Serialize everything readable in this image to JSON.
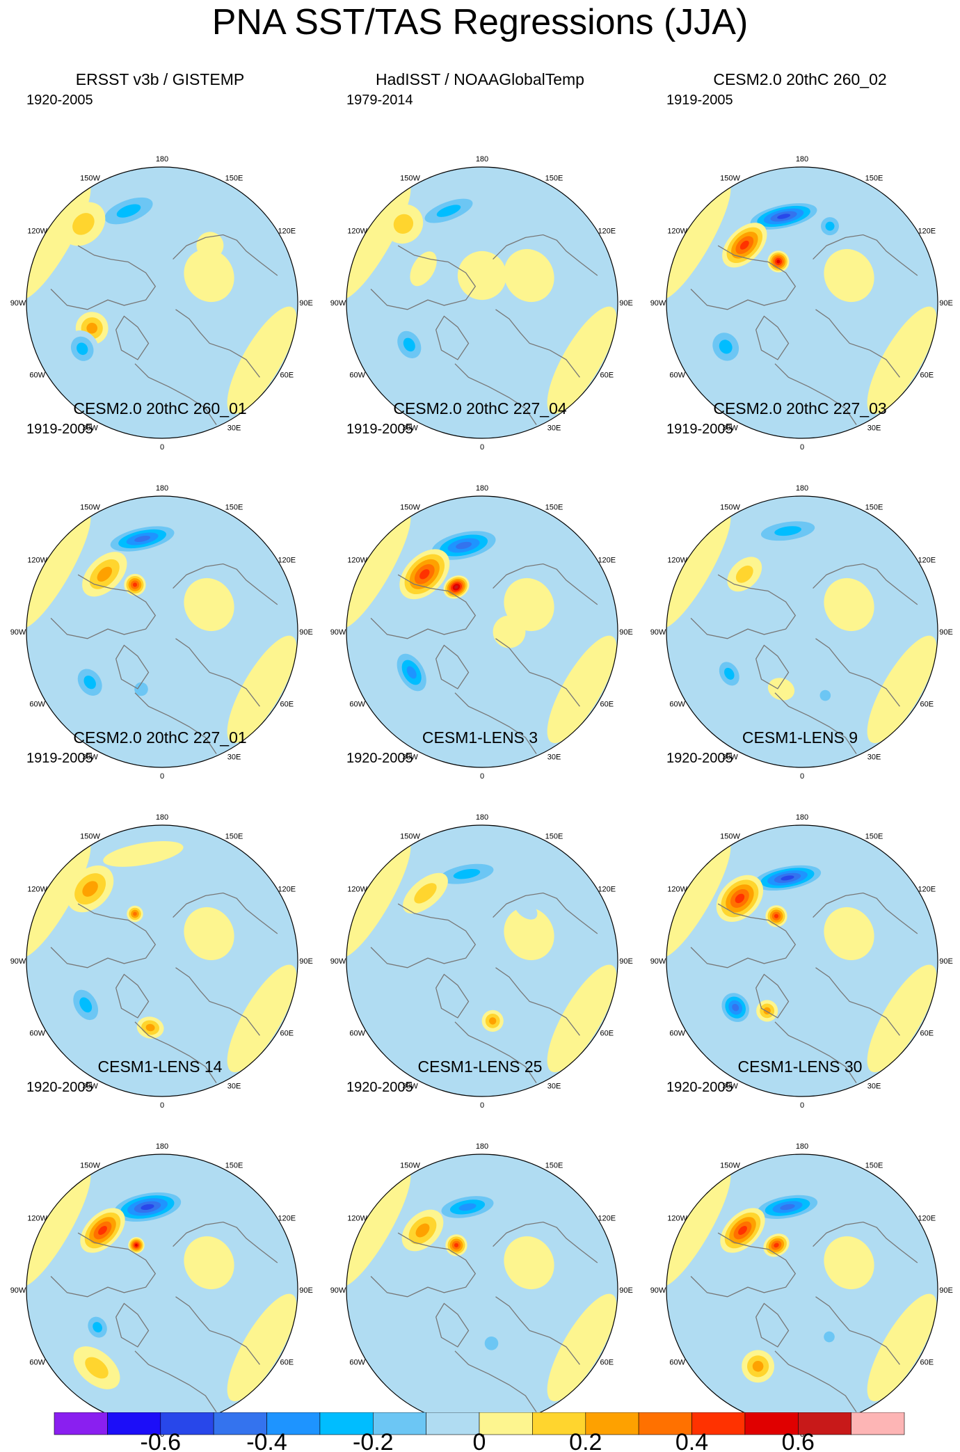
{
  "title": "PNA SST/TAS Regressions (JJA)",
  "chart_data": {
    "type": "heatmap",
    "projection": "north-polar-stereographic",
    "title": "PNA SST/TAS Regressions (JJA)",
    "longitude_labels": [
      "180",
      "150E",
      "120E",
      "90E",
      "60E",
      "30E",
      "0",
      "30W",
      "60W",
      "90W",
      "120W",
      "150W"
    ],
    "colorbar": {
      "levels": [
        -0.7,
        -0.6,
        -0.5,
        -0.4,
        -0.3,
        -0.2,
        -0.1,
        0,
        0.1,
        0.2,
        0.3,
        0.4,
        0.5,
        0.6,
        0.7
      ],
      "tick_labels": [
        "-0.6",
        "-0.4",
        "-0.2",
        "0",
        "0.2",
        "0.4",
        "0.6"
      ],
      "tick_values": [
        -0.6,
        -0.4,
        -0.2,
        0,
        0.2,
        0.4,
        0.6
      ],
      "colors": [
        "#8a1ff0",
        "#1c0ef8",
        "#2847ea",
        "#3473ee",
        "#1e94ff",
        "#00bdff",
        "#6cc6f4",
        "#b0dcf2",
        "#fdf58f",
        "#ffd52e",
        "#fea100",
        "#ff7100",
        "#ff3200",
        "#e00000",
        "#c81919",
        "#fdb5b5"
      ]
    },
    "panels": [
      {
        "title": "ERSST v3b / GISTEMP",
        "years": "1920-2005",
        "variant": 1
      },
      {
        "title": "HadISST / NOAAGlobalTemp",
        "years": "1979-2014",
        "variant": 2
      },
      {
        "title": "CESM2.0 20thC 260_02",
        "years": "1919-2005",
        "variant": 3
      },
      {
        "title": "CESM2.0 20thC 260_01",
        "years": "1919-2005",
        "variant": 4
      },
      {
        "title": "CESM2.0 20thC 227_04",
        "years": "1919-2005",
        "variant": 5
      },
      {
        "title": "CESM2.0 20thC 227_03",
        "years": "1919-2005",
        "variant": 6
      },
      {
        "title": "CESM2.0 20thC 227_01",
        "years": "1919-2005",
        "variant": 7
      },
      {
        "title": "CESM1-LENS 3",
        "years": "1920-2005",
        "variant": 8
      },
      {
        "title": "CESM1-LENS 9",
        "years": "1920-2005",
        "variant": 9
      },
      {
        "title": "CESM1-LENS 14",
        "years": "1920-2005",
        "variant": 10
      },
      {
        "title": "CESM1-LENS 25",
        "years": "1920-2005",
        "variant": 11
      },
      {
        "title": "CESM1-LENS 30",
        "years": "1920-2005",
        "variant": 12
      }
    ]
  }
}
